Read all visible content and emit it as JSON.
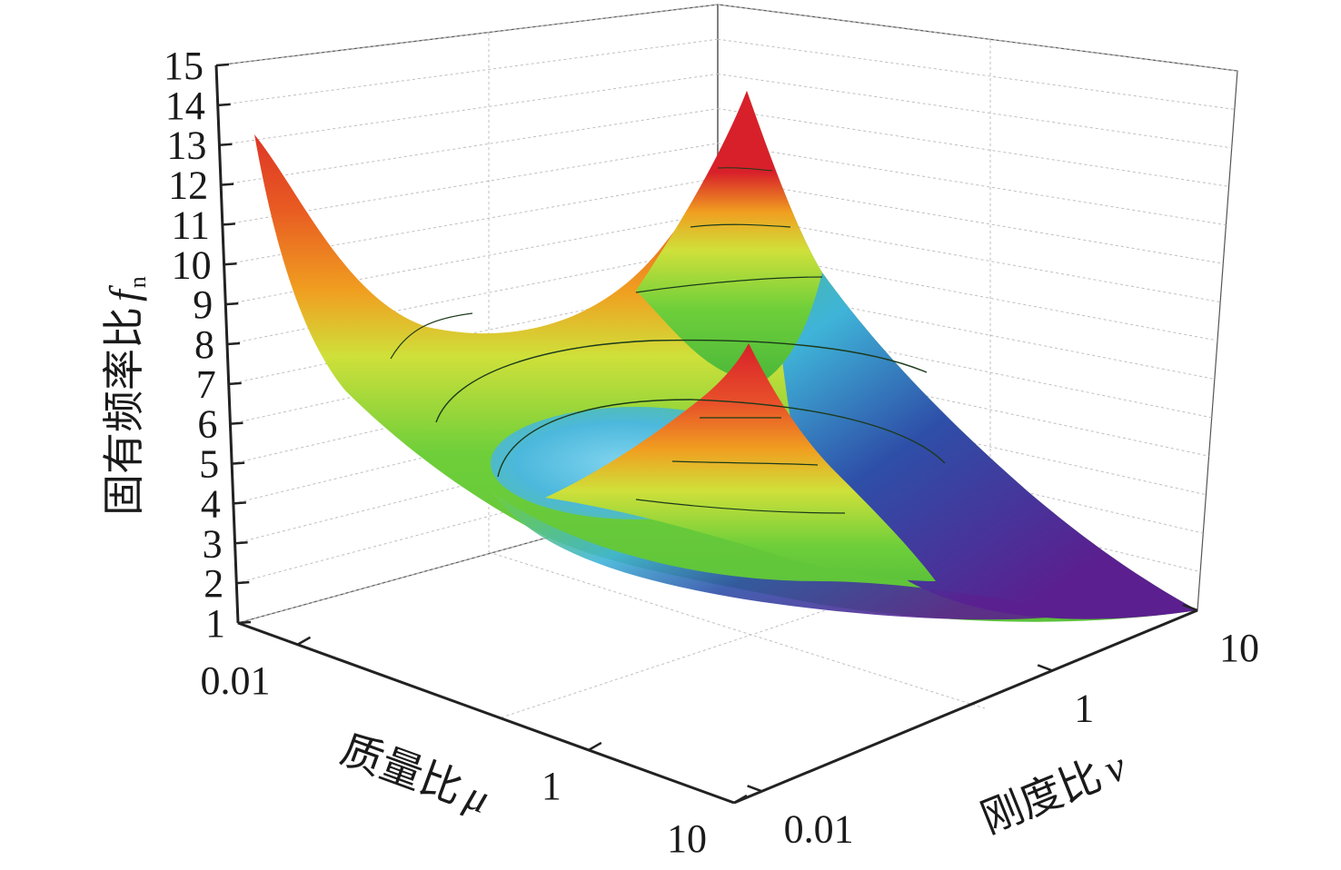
{
  "chart_data": {
    "type": "surface",
    "zlabel": "固有频率比",
    "zlabel_symbol": "f",
    "zlabel_subscript": "n",
    "xlabel": "质量比",
    "xlabel_symbol": "μ",
    "ylabel": "刚度比",
    "ylabel_symbol": "ν",
    "z_ticks": [
      "1",
      "2",
      "3",
      "4",
      "5",
      "6",
      "7",
      "8",
      "9",
      "10",
      "11",
      "12",
      "13",
      "14",
      "15"
    ],
    "zlim": [
      1,
      15
    ],
    "x_ticks": [
      "0.01",
      "1",
      "10"
    ],
    "x_scale": "log",
    "y_ticks": [
      "0.01",
      "1",
      "10"
    ],
    "y_scale": "log",
    "grid": true,
    "colormap": [
      "#5b1f8f",
      "#2e4fa8",
      "#3fb4d8",
      "#6fcf3a",
      "#cfe03a",
      "#f0a020",
      "#d8202a"
    ],
    "surface_landmarks": [
      {
        "name": "corner μ=0.01, ν=0.01",
        "fn": 13.3
      },
      {
        "name": "corner μ=0.01, ν=10 (back peak)",
        "fn": 14.2
      },
      {
        "name": "cusp near μ=1, ν=1",
        "fn": 10.0
      },
      {
        "name": "corner μ=10, ν=10",
        "fn": 1.1
      },
      {
        "name": "valley minimum",
        "fn": 4.3
      }
    ]
  }
}
